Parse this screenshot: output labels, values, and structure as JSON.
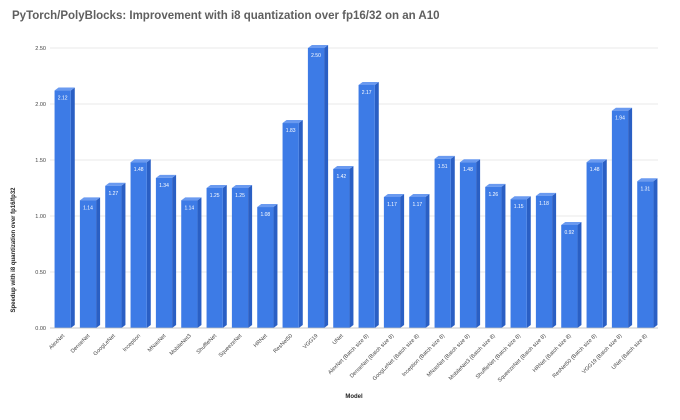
{
  "chart_data": {
    "type": "bar",
    "title": "PyTorch/PolyBlocks: Improvement with i8 quantization over fp16/32 on an A10",
    "xlabel": "Model",
    "ylabel": "Speedup with i8 quantization over fp16/fp32",
    "ylim": [
      0,
      2.5
    ],
    "yticks": [
      "0.00",
      "0.50",
      "1.00",
      "1.50",
      "2.00",
      "2.50"
    ],
    "grid": true,
    "bar_color": "#3d7be6",
    "categories": [
      "AlexNet",
      "DenseNet",
      "GoogLeNet",
      "Inception",
      "MNasNet",
      "MobileNet3",
      "ShuffleNet",
      "SqueezeNet",
      "HRNet",
      "ResNet50",
      "VGG19",
      "UNet",
      "AlexNet (Batch size 8)",
      "DenseNet (Batch size 8)",
      "GoogLeNet (Batch size 8)",
      "Inception (Batch size 8)",
      "MNasNet (Batch size 8)",
      "MobileNet3 (Batch size 8)",
      "ShuffleNet (Batch size 8)",
      "SqueezeNet (Batch size 8)",
      "HRNet (Batch size 8)",
      "ResNet50 (Batch size 8)",
      "VGG19 (Batch size 8)",
      "UNet (Batch size 8)"
    ],
    "values": [
      2.12,
      1.14,
      1.27,
      1.48,
      1.34,
      1.14,
      1.25,
      1.25,
      1.08,
      1.83,
      2.5,
      1.42,
      2.17,
      1.17,
      1.17,
      1.51,
      1.48,
      1.26,
      1.15,
      1.18,
      0.92,
      1.48,
      1.94,
      1.31
    ],
    "data_labels": [
      "2.12",
      "1.14",
      "1.27",
      "1.48",
      "1.34",
      "1.14",
      "1.25",
      "1.25",
      "1.08",
      "1.83",
      "2.50",
      "1.42",
      "2.17",
      "1.17",
      "1.17",
      "1.51",
      "1.48",
      "1.26",
      "1.15",
      "1.18",
      "0.92",
      "1.48",
      "1.94",
      "1.31"
    ]
  }
}
